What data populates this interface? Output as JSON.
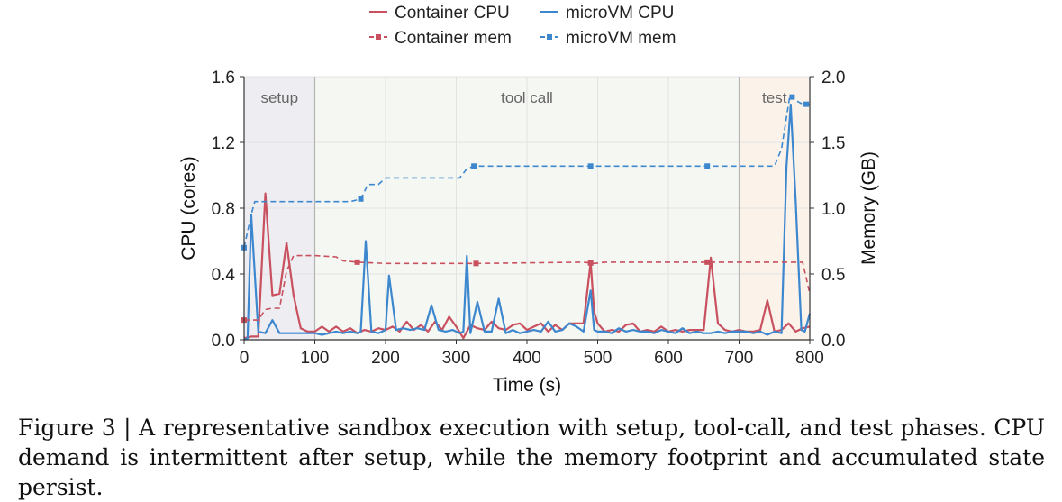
{
  "chart_data": {
    "type": "line",
    "xlabel": "Time (s)",
    "ylabel": "CPU (cores)",
    "y2label": "Memory (GB)",
    "xlim": [
      0,
      800
    ],
    "ylim": [
      0,
      1.6
    ],
    "y2lim": [
      0,
      2.0
    ],
    "xticks": [
      0,
      100,
      200,
      300,
      400,
      500,
      600,
      700,
      800
    ],
    "yticks": [
      0.0,
      0.4,
      0.8,
      1.2,
      1.6
    ],
    "y2ticks": [
      0.0,
      0.5,
      1.0,
      1.5,
      2.0
    ],
    "ytick_labels": [
      "0.0",
      "0.4",
      "0.8",
      "1.2",
      "1.6"
    ],
    "y2tick_labels": [
      "0.0",
      "0.5",
      "1.0",
      "1.5",
      "2.0"
    ],
    "grid": true,
    "legend_position": "top-center",
    "phases": [
      {
        "label": "setup",
        "start": 0,
        "end": 100,
        "color": "#eeeef2"
      },
      {
        "label": "tool call",
        "start": 100,
        "end": 700,
        "color": "#f4f7f2"
      },
      {
        "label": "test",
        "start": 700,
        "end": 800,
        "color": "#fbf3ea"
      }
    ],
    "series": [
      {
        "name": "Container CPU",
        "axis": "left",
        "color": "#c9505f",
        "style": "solid",
        "x": [
          0,
          10,
          20,
          30,
          40,
          50,
          60,
          70,
          80,
          90,
          100,
          110,
          120,
          130,
          140,
          150,
          160,
          170,
          180,
          190,
          200,
          210,
          220,
          230,
          240,
          250,
          260,
          270,
          280,
          290,
          300,
          310,
          320,
          330,
          340,
          350,
          360,
          370,
          380,
          390,
          400,
          410,
          420,
          430,
          440,
          450,
          460,
          470,
          480,
          490,
          495,
          500,
          510,
          520,
          530,
          540,
          550,
          560,
          570,
          580,
          590,
          600,
          610,
          620,
          630,
          640,
          650,
          660,
          670,
          680,
          690,
          700,
          710,
          720,
          730,
          740,
          750,
          760,
          770,
          780,
          790,
          800
        ],
        "y": [
          0.01,
          0.02,
          0.02,
          0.89,
          0.27,
          0.28,
          0.59,
          0.27,
          0.07,
          0.05,
          0.05,
          0.08,
          0.05,
          0.08,
          0.05,
          0.07,
          0.04,
          0.06,
          0.05,
          0.07,
          0.06,
          0.08,
          0.05,
          0.11,
          0.06,
          0.09,
          0.05,
          0.11,
          0.06,
          0.14,
          0.08,
          0.01,
          0.09,
          0.07,
          0.06,
          0.11,
          0.07,
          0.06,
          0.09,
          0.1,
          0.06,
          0.08,
          0.1,
          0.05,
          0.09,
          0.06,
          0.1,
          0.1,
          0.1,
          0.47,
          0.17,
          0.1,
          0.05,
          0.06,
          0.05,
          0.09,
          0.1,
          0.05,
          0.06,
          0.05,
          0.08,
          0.05,
          0.06,
          0.05,
          0.06,
          0.06,
          0.06,
          0.5,
          0.1,
          0.06,
          0.05,
          0.06,
          0.05,
          0.05,
          0.06,
          0.24,
          0.05,
          0.06,
          0.1,
          0.05,
          0.07,
          0.08
        ]
      },
      {
        "name": "microVM CPU",
        "axis": "left",
        "color": "#3d87cf",
        "style": "solid",
        "x": [
          0,
          5,
          10,
          20,
          30,
          40,
          50,
          60,
          70,
          80,
          90,
          100,
          110,
          120,
          130,
          140,
          150,
          160,
          165,
          172,
          180,
          190,
          200,
          205,
          215,
          225,
          235,
          245,
          255,
          265,
          275,
          285,
          295,
          305,
          310,
          315,
          320,
          330,
          340,
          350,
          360,
          370,
          380,
          390,
          400,
          410,
          420,
          430,
          440,
          450,
          460,
          470,
          480,
          490,
          495,
          500,
          510,
          520,
          530,
          540,
          550,
          560,
          570,
          580,
          590,
          600,
          610,
          620,
          630,
          640,
          650,
          660,
          670,
          680,
          690,
          700,
          710,
          720,
          730,
          740,
          750,
          760,
          767,
          773,
          780,
          788,
          793,
          800
        ],
        "y": [
          0.0,
          0.01,
          0.76,
          0.05,
          0.04,
          0.12,
          0.04,
          0.04,
          0.04,
          0.04,
          0.04,
          0.04,
          0.03,
          0.04,
          0.05,
          0.04,
          0.05,
          0.04,
          0.05,
          0.6,
          0.05,
          0.04,
          0.06,
          0.39,
          0.06,
          0.07,
          0.06,
          0.07,
          0.06,
          0.21,
          0.06,
          0.05,
          0.06,
          0.04,
          0.05,
          0.51,
          0.04,
          0.23,
          0.05,
          0.05,
          0.25,
          0.04,
          0.06,
          0.04,
          0.05,
          0.06,
          0.05,
          0.11,
          0.05,
          0.06,
          0.1,
          0.08,
          0.05,
          0.3,
          0.06,
          0.05,
          0.05,
          0.04,
          0.07,
          0.05,
          0.06,
          0.05,
          0.05,
          0.04,
          0.06,
          0.05,
          0.04,
          0.07,
          0.04,
          0.05,
          0.04,
          0.04,
          0.05,
          0.04,
          0.05,
          0.05,
          0.05,
          0.04,
          0.05,
          0.03,
          0.05,
          0.04,
          1.05,
          1.43,
          0.85,
          0.06,
          0.05,
          0.16
        ]
      },
      {
        "name": "Container mem",
        "axis": "right",
        "color": "#c9505f",
        "style": "dashed-square",
        "x": [
          0,
          10,
          20,
          30,
          40,
          50,
          60,
          70,
          80,
          100,
          130,
          140,
          160,
          200,
          300,
          320,
          330,
          480,
          495,
          510,
          660,
          680,
          780,
          790,
          800
        ],
        "y": [
          0.15,
          0.15,
          0.15,
          0.23,
          0.24,
          0.24,
          0.52,
          0.64,
          0.64,
          0.64,
          0.63,
          0.6,
          0.59,
          0.58,
          0.58,
          0.58,
          0.58,
          0.59,
          0.58,
          0.59,
          0.59,
          0.59,
          0.59,
          0.59,
          0.35
        ],
        "markers_x": [
          0,
          160,
          328,
          490,
          655
        ]
      },
      {
        "name": "microVM mem",
        "axis": "right",
        "color": "#3d87cf",
        "style": "dashed-square",
        "x": [
          0,
          10,
          15,
          20,
          100,
          150,
          165,
          175,
          190,
          200,
          305,
          315,
          325,
          490,
          655,
          750,
          760,
          772,
          780,
          790,
          800
        ],
        "y": [
          0.7,
          0.95,
          1.05,
          1.05,
          1.05,
          1.05,
          1.07,
          1.18,
          1.18,
          1.23,
          1.23,
          1.3,
          1.32,
          1.32,
          1.32,
          1.32,
          1.45,
          1.86,
          1.82,
          1.79,
          1.79
        ],
        "markers_x": [
          0,
          165,
          325,
          490,
          655,
          775,
          795
        ]
      }
    ]
  },
  "caption": "Figure 3 | A representative sandbox execution with setup, tool-call, and test phases. CPU demand is intermittent after setup, while the memory footprint and accumulated state persist."
}
